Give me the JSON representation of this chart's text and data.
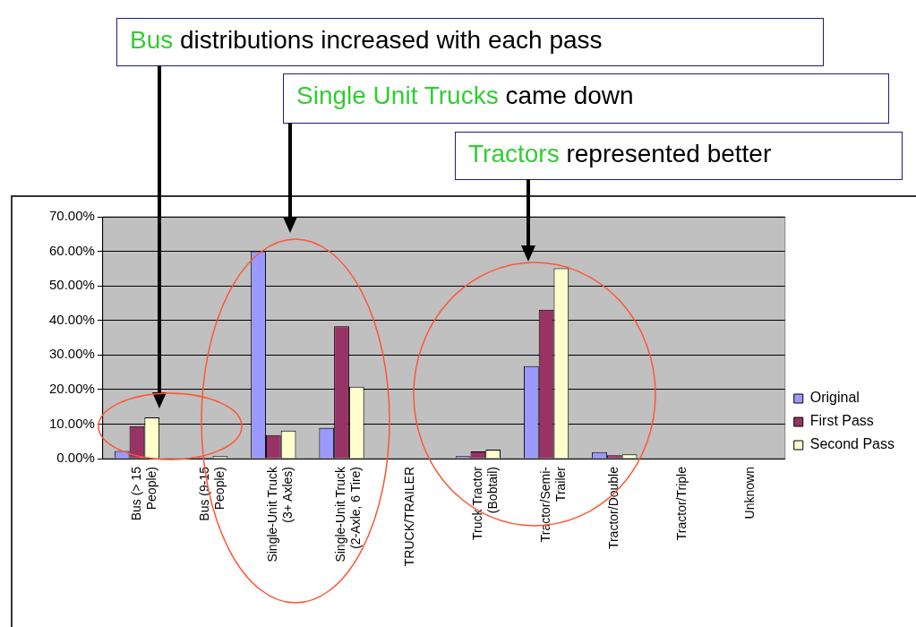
{
  "chart_data": {
    "type": "bar",
    "categories": [
      "Bus (> 15\nPeople)",
      "Bus (9-15\nPeople)",
      "Single-Unit Truck\n(3+ Axles)",
      "Single-Unit Truck\n(2-Axle, 6 Tire)",
      "TRUCK/TRAILER",
      "Truck Tractor\n(Bobtail)",
      "Tractor/Semi-\nTrailer",
      "Tractor/Double",
      "Tractor/Triple",
      "Unknown"
    ],
    "series": [
      {
        "name": "Original",
        "color": "#9999ff",
        "values": [
          2.2,
          0,
          60,
          8.9,
          0,
          0.7,
          26.8,
          1.9,
          0,
          0
        ]
      },
      {
        "name": "First Pass",
        "color": "#993366",
        "values": [
          9.4,
          0.3,
          6.8,
          38.3,
          0,
          2.1,
          43.1,
          1.0,
          0,
          0
        ]
      },
      {
        "name": "Second Pass",
        "color": "#ffffcc",
        "values": [
          11.9,
          0.7,
          8.1,
          20.8,
          0,
          2.6,
          55.1,
          1.2,
          0,
          0
        ]
      }
    ],
    "ylim": [
      0,
      70
    ],
    "yticks": [
      {
        "value": 0,
        "label": "0.00%"
      },
      {
        "value": 10,
        "label": "10.00%"
      },
      {
        "value": 20,
        "label": "20.00%"
      },
      {
        "value": 30,
        "label": "30.00%"
      },
      {
        "value": 40,
        "label": "40.00%"
      },
      {
        "value": 50,
        "label": "50.00%"
      },
      {
        "value": 60,
        "label": "60.00%"
      },
      {
        "value": 70,
        "label": "70.00%"
      }
    ],
    "grid": "y",
    "legend": "right",
    "annotations": [
      "Bus distributions increased with each pass",
      "Single Unit Trucks came down",
      "Tractors represented better"
    ]
  }
}
